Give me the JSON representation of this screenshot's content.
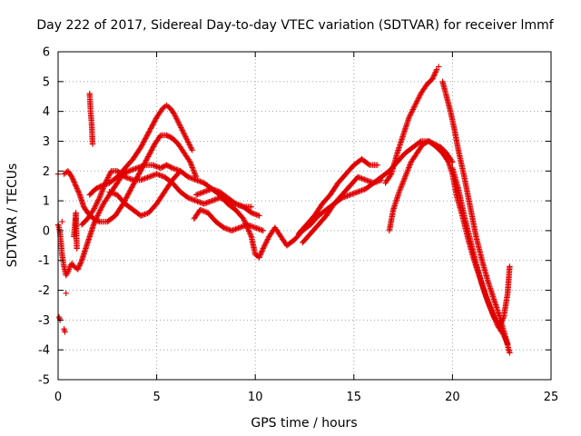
{
  "chart_data": {
    "type": "scatter",
    "title": "Day 222 of 2017, Sidereal Day-to-day VTEC variation (SDTVAR) for receiver lmmf",
    "xlabel": "GPS time / hours",
    "ylabel": "SDTVAR / TECUs",
    "xlim": [
      0,
      25
    ],
    "ylim": [
      -5,
      6
    ],
    "xticks": [
      "0",
      "5",
      "10",
      "15",
      "20",
      "25"
    ],
    "yticks": [
      "-5",
      "-4",
      "-3",
      "-2",
      "-1",
      "0",
      "1",
      "2",
      "3",
      "4",
      "5",
      "6"
    ],
    "grid": true,
    "marker": "+",
    "color": "#e00000",
    "series": [
      {
        "x": [
          0.0,
          0.05,
          0.1,
          0.15,
          0.2,
          0.3,
          0.4,
          0.5,
          0.6,
          0.7,
          0.8,
          1.0,
          1.2,
          1.4,
          1.6,
          1.8,
          2.0,
          2.3,
          2.6,
          3.0,
          3.3,
          3.6,
          4.0,
          4.4,
          4.8,
          5.2,
          5.5,
          5.8,
          6.2,
          6.6,
          7.0,
          7.4,
          7.8,
          8.2,
          8.6,
          9.0,
          9.4,
          9.8,
          10.0,
          10.2,
          10.4,
          10.7,
          11.0,
          11.3,
          11.6,
          12.0,
          12.4,
          12.8,
          13.2,
          13.6,
          14.0,
          14.4,
          14.8,
          15.2,
          15.6,
          16.0,
          16.4,
          16.8,
          17.2,
          17.6,
          18.0,
          18.4,
          18.8,
          19.2,
          19.5,
          19.8,
          20.0,
          20.2,
          20.5,
          20.8,
          21.1,
          21.4,
          21.7,
          22.0,
          22.3,
          22.6,
          22.8
        ],
        "y": [
          0.2,
          0.1,
          -0.1,
          -0.4,
          -0.8,
          -1.2,
          -1.5,
          -1.4,
          -1.2,
          -1.1,
          -1.2,
          -1.3,
          -1.0,
          -0.6,
          -0.2,
          0.2,
          0.5,
          0.9,
          1.2,
          1.6,
          1.9,
          2.0,
          2.1,
          2.2,
          2.2,
          2.1,
          2.2,
          2.1,
          2.0,
          1.8,
          1.7,
          1.6,
          1.4,
          1.2,
          0.9,
          0.7,
          0.4,
          -0.2,
          -0.8,
          -0.9,
          -0.6,
          -0.2,
          0.1,
          -0.2,
          -0.5,
          -0.3,
          0.0,
          0.2,
          0.5,
          0.7,
          0.9,
          1.1,
          1.2,
          1.3,
          1.4,
          1.6,
          1.8,
          2.0,
          2.3,
          2.6,
          2.8,
          3.0,
          3.0,
          2.8,
          2.6,
          2.3,
          1.9,
          1.2,
          0.5,
          -0.3,
          -1.0,
          -1.6,
          -2.2,
          -2.7,
          -3.2,
          -3.5,
          -3.8
        ]
      },
      {
        "x": [
          0.3,
          0.5,
          0.7,
          0.9,
          1.1,
          1.3,
          1.5,
          1.8,
          2.1,
          2.5,
          2.9,
          3.3,
          3.7,
          4.1,
          4.5,
          4.9,
          5.2,
          5.5,
          5.8,
          6.1,
          6.4,
          6.7,
          7.0
        ],
        "y": [
          1.9,
          2.0,
          1.8,
          1.5,
          1.2,
          0.8,
          0.6,
          0.4,
          0.3,
          0.3,
          0.5,
          0.9,
          1.4,
          1.9,
          2.4,
          2.9,
          3.2,
          3.2,
          3.1,
          2.9,
          2.6,
          2.3,
          1.8
        ]
      },
      {
        "x": [
          1.6,
          1.9,
          2.2,
          2.6,
          3.0,
          3.4,
          3.8,
          4.2,
          4.6,
          5.0,
          5.3,
          5.5,
          5.7,
          5.9,
          6.2,
          6.5,
          6.8
        ],
        "y": [
          1.2,
          1.4,
          1.5,
          1.6,
          1.8,
          2.1,
          2.4,
          2.8,
          3.3,
          3.8,
          4.1,
          4.2,
          4.1,
          3.9,
          3.5,
          3.1,
          2.7
        ]
      },
      {
        "x": [
          1.2,
          1.5,
          1.8,
          2.1,
          2.4,
          2.7,
          3.0,
          3.4,
          3.8,
          4.2,
          4.6,
          5.0,
          5.4,
          5.8,
          6.2,
          6.6,
          7.0,
          7.4,
          7.8,
          8.2,
          8.6,
          9.0,
          9.4,
          9.8
        ],
        "y": [
          0.2,
          0.4,
          0.7,
          1.1,
          1.6,
          2.0,
          2.0,
          1.8,
          1.7,
          1.7,
          1.8,
          1.9,
          1.8,
          1.6,
          1.3,
          1.1,
          1.0,
          0.9,
          1.0,
          1.1,
          1.0,
          0.9,
          0.8,
          0.8
        ]
      },
      {
        "x": [
          2.6,
          3.0,
          3.4,
          3.8,
          4.2,
          4.6,
          5.0,
          5.4,
          5.8,
          6.2
        ],
        "y": [
          1.3,
          1.2,
          0.9,
          0.7,
          0.5,
          0.6,
          0.9,
          1.3,
          1.7,
          2.0
        ]
      },
      {
        "x": [
          7.0,
          7.4,
          7.8,
          8.2,
          8.6,
          9.0,
          9.4,
          9.8,
          10.2
        ],
        "y": [
          1.2,
          1.3,
          1.4,
          1.3,
          1.1,
          0.9,
          0.8,
          0.6,
          0.5
        ]
      },
      {
        "x": [
          6.9,
          7.2,
          7.6,
          8.0,
          8.4,
          8.8,
          9.2,
          9.6,
          10.0,
          10.4
        ],
        "y": [
          0.4,
          0.7,
          0.6,
          0.3,
          0.1,
          0.0,
          0.1,
          0.2,
          0.1,
          0.0
        ]
      },
      {
        "x": [
          12.2,
          12.6,
          13.0,
          13.4,
          13.8,
          14.2,
          14.6,
          15.0,
          15.4,
          15.8,
          16.2
        ],
        "y": [
          -0.1,
          0.2,
          0.5,
          0.9,
          1.2,
          1.6,
          1.9,
          2.2,
          2.4,
          2.2,
          2.2
        ]
      },
      {
        "x": [
          12.4,
          12.8,
          13.2,
          13.6,
          14.0,
          14.4,
          14.8,
          15.2,
          15.6,
          16.0,
          16.4
        ],
        "y": [
          -0.4,
          -0.1,
          0.2,
          0.5,
          0.9,
          1.2,
          1.5,
          1.8,
          1.7,
          1.6,
          1.7
        ]
      },
      {
        "x": [
          16.6,
          16.9,
          17.2,
          17.5,
          17.8,
          18.1,
          18.4,
          18.7,
          19.0,
          19.2
        ],
        "y": [
          1.6,
          1.9,
          2.6,
          3.2,
          3.8,
          4.2,
          4.6,
          4.9,
          5.1,
          5.4
        ]
      },
      {
        "x": [
          16.8,
          17.0,
          17.3,
          17.6,
          17.9,
          18.2,
          18.5,
          18.8,
          19.1,
          19.4,
          19.7,
          20.0
        ],
        "y": [
          0.0,
          0.7,
          1.3,
          1.8,
          2.3,
          2.6,
          2.9,
          3.0,
          2.9,
          2.8,
          2.6,
          2.3
        ]
      },
      {
        "x": [
          19.5,
          19.7,
          19.9,
          20.1,
          20.3,
          20.6,
          20.9,
          21.2,
          21.5,
          21.8,
          22.1,
          22.4,
          22.7,
          22.9
        ],
        "y": [
          5.0,
          4.5,
          4.0,
          3.4,
          2.7,
          1.8,
          0.8,
          -0.2,
          -1.0,
          -1.7,
          -2.3,
          -2.9,
          -3.6,
          -4.1
        ]
      },
      {
        "x": [
          20.0,
          20.3,
          20.6,
          20.9,
          21.2,
          21.5,
          21.8,
          22.1,
          22.4,
          22.6,
          22.8,
          22.9
        ],
        "y": [
          2.1,
          1.4,
          0.5,
          -0.3,
          -1.1,
          -1.8,
          -2.4,
          -2.9,
          -3.2,
          -2.9,
          -2.1,
          -1.2
        ]
      },
      {
        "x": [
          0.0,
          0.05,
          0.1,
          0.2,
          0.3,
          0.35,
          0.4,
          0.8,
          0.9,
          0.95,
          1.6,
          1.65,
          1.7,
          1.75,
          19.3
        ],
        "y": [
          1.9,
          -2.9,
          -3.0,
          0.3,
          -3.3,
          -3.4,
          -2.1,
          -0.2,
          0.6,
          -0.6,
          4.6,
          4.0,
          3.6,
          2.9,
          5.5
        ]
      }
    ]
  }
}
